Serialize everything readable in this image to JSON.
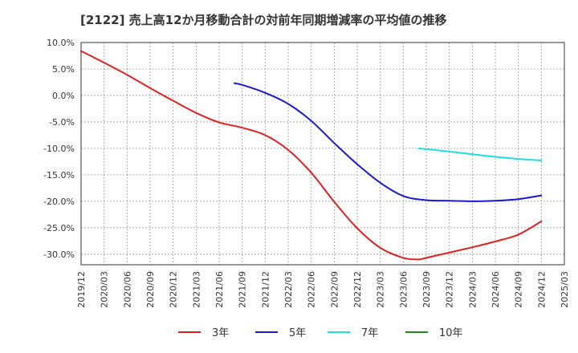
{
  "chart_data": {
    "type": "line",
    "title": "[2122]  売上高12か月移動合計の対前年同期増減率の平均値の推移",
    "xlabel": "",
    "ylabel": "",
    "ylim": [
      -32,
      10
    ],
    "yticks": [
      10,
      5,
      0,
      -5,
      -10,
      -15,
      -20,
      -25,
      -30
    ],
    "ytick_labels": [
      "10.0%",
      "5.0%",
      "0.0%",
      "-5.0%",
      "-10.0%",
      "-15.0%",
      "-20.0%",
      "-25.0%",
      "-30.0%"
    ],
    "x_categories": [
      "2019/12",
      "2020/03",
      "2020/06",
      "2020/09",
      "2020/12",
      "2021/03",
      "2021/06",
      "2021/09",
      "2021/12",
      "2022/03",
      "2022/06",
      "2022/09",
      "2022/12",
      "2023/03",
      "2023/06",
      "2023/09",
      "2023/12",
      "2024/03",
      "2024/06",
      "2024/09",
      "2024/12",
      "2025/03"
    ],
    "grid": true,
    "legend_position": "bottom",
    "series": [
      {
        "name": "3年",
        "color": "#dd2222",
        "points": [
          [
            "2019/12",
            8.4
          ],
          [
            "2020/03",
            6.2
          ],
          [
            "2020/06",
            3.9
          ],
          [
            "2020/09",
            1.4
          ],
          [
            "2020/12",
            -1.0
          ],
          [
            "2021/03",
            -3.3
          ],
          [
            "2021/06",
            -5.1
          ],
          [
            "2021/09",
            -6.1
          ],
          [
            "2021/12",
            -7.5
          ],
          [
            "2022/03",
            -10.3
          ],
          [
            "2022/06",
            -14.6
          ],
          [
            "2022/09",
            -20.1
          ],
          [
            "2022/12",
            -25.1
          ],
          [
            "2023/03",
            -28.8
          ],
          [
            "2023/06",
            -30.7
          ],
          [
            "2023/08",
            -31.0
          ],
          [
            "2023/09",
            -30.7
          ],
          [
            "2023/12",
            -29.7
          ],
          [
            "2024/03",
            -28.7
          ],
          [
            "2024/06",
            -27.6
          ],
          [
            "2024/09",
            -26.3
          ],
          [
            "2024/12",
            -23.8
          ]
        ]
      },
      {
        "name": "5年",
        "color": "#1a1acc",
        "points": [
          [
            "2021/08",
            2.3
          ],
          [
            "2021/09",
            2.0
          ],
          [
            "2021/12",
            0.5
          ],
          [
            "2022/03",
            -1.6
          ],
          [
            "2022/06",
            -4.8
          ],
          [
            "2022/09",
            -9.0
          ],
          [
            "2022/12",
            -13.0
          ],
          [
            "2023/03",
            -16.5
          ],
          [
            "2023/06",
            -19.0
          ],
          [
            "2023/09",
            -19.8
          ],
          [
            "2023/12",
            -19.9
          ],
          [
            "2024/03",
            -20.0
          ],
          [
            "2024/06",
            -19.9
          ],
          [
            "2024/09",
            -19.6
          ],
          [
            "2024/12",
            -18.9
          ]
        ]
      },
      {
        "name": "7年",
        "color": "#22dddd",
        "points": [
          [
            "2023/08",
            -10.0
          ],
          [
            "2023/12",
            -10.6
          ],
          [
            "2024/03",
            -11.1
          ],
          [
            "2024/06",
            -11.6
          ],
          [
            "2024/09",
            -12.0
          ],
          [
            "2024/12",
            -12.3
          ]
        ]
      },
      {
        "name": "10年",
        "color": "#228822",
        "points": []
      }
    ]
  }
}
